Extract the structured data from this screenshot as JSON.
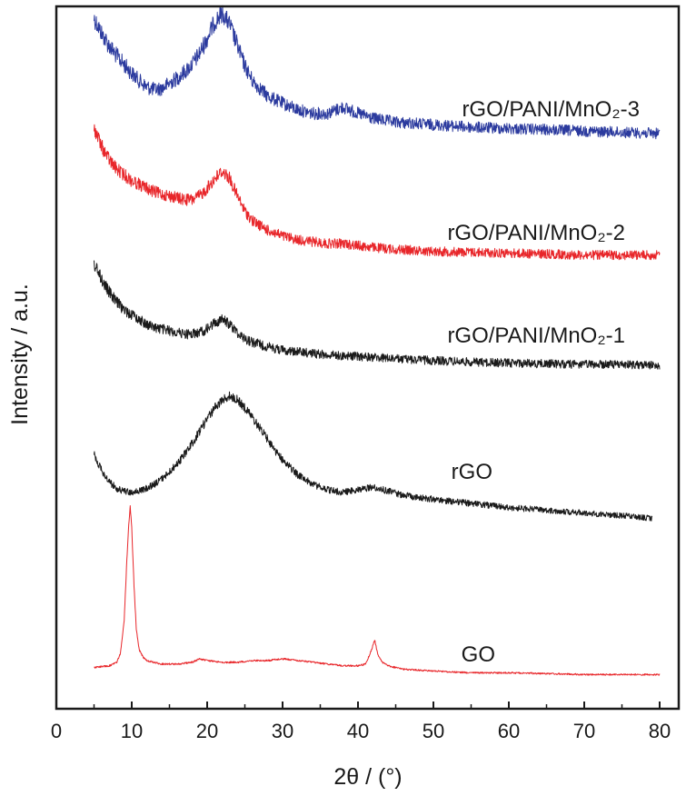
{
  "chart_data": {
    "type": "line",
    "xlabel": "2θ / (°)",
    "ylabel": "Intensity / a.u.",
    "xlim": [
      0,
      80
    ],
    "xticks": [
      "0",
      "10",
      "20",
      "30",
      "40",
      "50",
      "60",
      "70",
      "80"
    ],
    "yticks_shown": false,
    "grid": false,
    "legend": "inline labels beside each curve",
    "series": [
      {
        "name": "rGO/PANI/MnO₂-3",
        "color": "#2b3a9e",
        "x": [
          5,
          6,
          7,
          8,
          9,
          10,
          11,
          12,
          13,
          14,
          15,
          16,
          17,
          18,
          19,
          20,
          21,
          22,
          23,
          24,
          25,
          26,
          28,
          30,
          32,
          34,
          36,
          38,
          40,
          42,
          45,
          50,
          55,
          60,
          65,
          70,
          75,
          80
        ],
        "y": [
          1.0,
          0.88,
          0.78,
          0.7,
          0.63,
          0.56,
          0.5,
          0.45,
          0.43,
          0.44,
          0.48,
          0.52,
          0.57,
          0.63,
          0.72,
          0.84,
          0.97,
          1.04,
          0.95,
          0.78,
          0.62,
          0.5,
          0.38,
          0.32,
          0.27,
          0.24,
          0.24,
          0.29,
          0.24,
          0.2,
          0.17,
          0.15,
          0.13,
          0.12,
          0.11,
          0.1,
          0.09,
          0.08
        ]
      },
      {
        "name": "rGO/PANI/MnO₂-2",
        "color": "#e8262a",
        "x": [
          5,
          6,
          7,
          8,
          9,
          10,
          11,
          12,
          13,
          14,
          15,
          16,
          17,
          18,
          19,
          20,
          21,
          22,
          23,
          24,
          25,
          26,
          28,
          30,
          32,
          34,
          36,
          38,
          40,
          42,
          45,
          50,
          55,
          60,
          65,
          70,
          75,
          80
        ],
        "y": [
          0.7,
          0.6,
          0.53,
          0.48,
          0.45,
          0.42,
          0.4,
          0.38,
          0.36,
          0.35,
          0.34,
          0.33,
          0.32,
          0.32,
          0.34,
          0.38,
          0.43,
          0.47,
          0.43,
          0.34,
          0.26,
          0.21,
          0.16,
          0.13,
          0.11,
          0.1,
          0.09,
          0.09,
          0.08,
          0.07,
          0.06,
          0.05,
          0.045,
          0.04,
          0.035,
          0.03,
          0.03,
          0.03
        ]
      },
      {
        "name": "rGO/PANI/MnO₂-1",
        "color": "#1a1a1a",
        "x": [
          5,
          6,
          7,
          8,
          9,
          10,
          11,
          12,
          13,
          14,
          15,
          16,
          17,
          18,
          19,
          20,
          21,
          22,
          23,
          24,
          25,
          26,
          28,
          30,
          32,
          34,
          36,
          38,
          40,
          42,
          45,
          50,
          55,
          60,
          65,
          70,
          75,
          80
        ],
        "y": [
          0.68,
          0.58,
          0.5,
          0.44,
          0.39,
          0.36,
          0.33,
          0.3,
          0.28,
          0.27,
          0.26,
          0.25,
          0.24,
          0.24,
          0.25,
          0.27,
          0.31,
          0.33,
          0.3,
          0.25,
          0.21,
          0.19,
          0.16,
          0.14,
          0.13,
          0.12,
          0.11,
          0.105,
          0.1,
          0.095,
          0.085,
          0.075,
          0.065,
          0.06,
          0.055,
          0.05,
          0.05,
          0.045
        ]
      },
      {
        "name": "rGO",
        "color": "#1a1a1a",
        "x": [
          5,
          6,
          7,
          8,
          9,
          10,
          11,
          12,
          13,
          14,
          15,
          16,
          17,
          18,
          19,
          20,
          21,
          22,
          23,
          24,
          25,
          26,
          27,
          28,
          29,
          30,
          32,
          34,
          36,
          38,
          40,
          42,
          44,
          46,
          50,
          55,
          60,
          65,
          70,
          75,
          79
        ],
        "y": [
          0.6,
          0.48,
          0.4,
          0.35,
          0.33,
          0.32,
          0.33,
          0.35,
          0.38,
          0.42,
          0.47,
          0.53,
          0.6,
          0.68,
          0.77,
          0.86,
          0.94,
          1.0,
          1.03,
          1.0,
          0.94,
          0.87,
          0.79,
          0.71,
          0.63,
          0.56,
          0.45,
          0.38,
          0.34,
          0.32,
          0.34,
          0.36,
          0.33,
          0.3,
          0.27,
          0.24,
          0.21,
          0.19,
          0.17,
          0.15,
          0.13
        ]
      },
      {
        "name": "GO",
        "color": "#e8262a",
        "x": [
          5,
          7,
          8,
          8.5,
          9,
          9.3,
          9.6,
          9.8,
          10,
          10.3,
          10.6,
          11,
          11.5,
          12,
          14,
          16,
          18,
          19,
          20,
          22,
          24,
          26,
          28,
          30,
          32,
          34,
          36,
          38,
          40,
          41,
          41.8,
          42.2,
          42.6,
          43.2,
          44,
          46,
          50,
          55,
          60,
          65,
          70,
          75,
          80
        ],
        "y": [
          0.08,
          0.09,
          0.11,
          0.16,
          0.35,
          0.65,
          0.9,
          1.0,
          0.88,
          0.55,
          0.3,
          0.18,
          0.14,
          0.12,
          0.1,
          0.1,
          0.11,
          0.13,
          0.12,
          0.11,
          0.11,
          0.12,
          0.12,
          0.13,
          0.12,
          0.11,
          0.1,
          0.09,
          0.09,
          0.1,
          0.18,
          0.24,
          0.16,
          0.11,
          0.09,
          0.07,
          0.06,
          0.05,
          0.05,
          0.045,
          0.04,
          0.04,
          0.04
        ]
      }
    ]
  }
}
